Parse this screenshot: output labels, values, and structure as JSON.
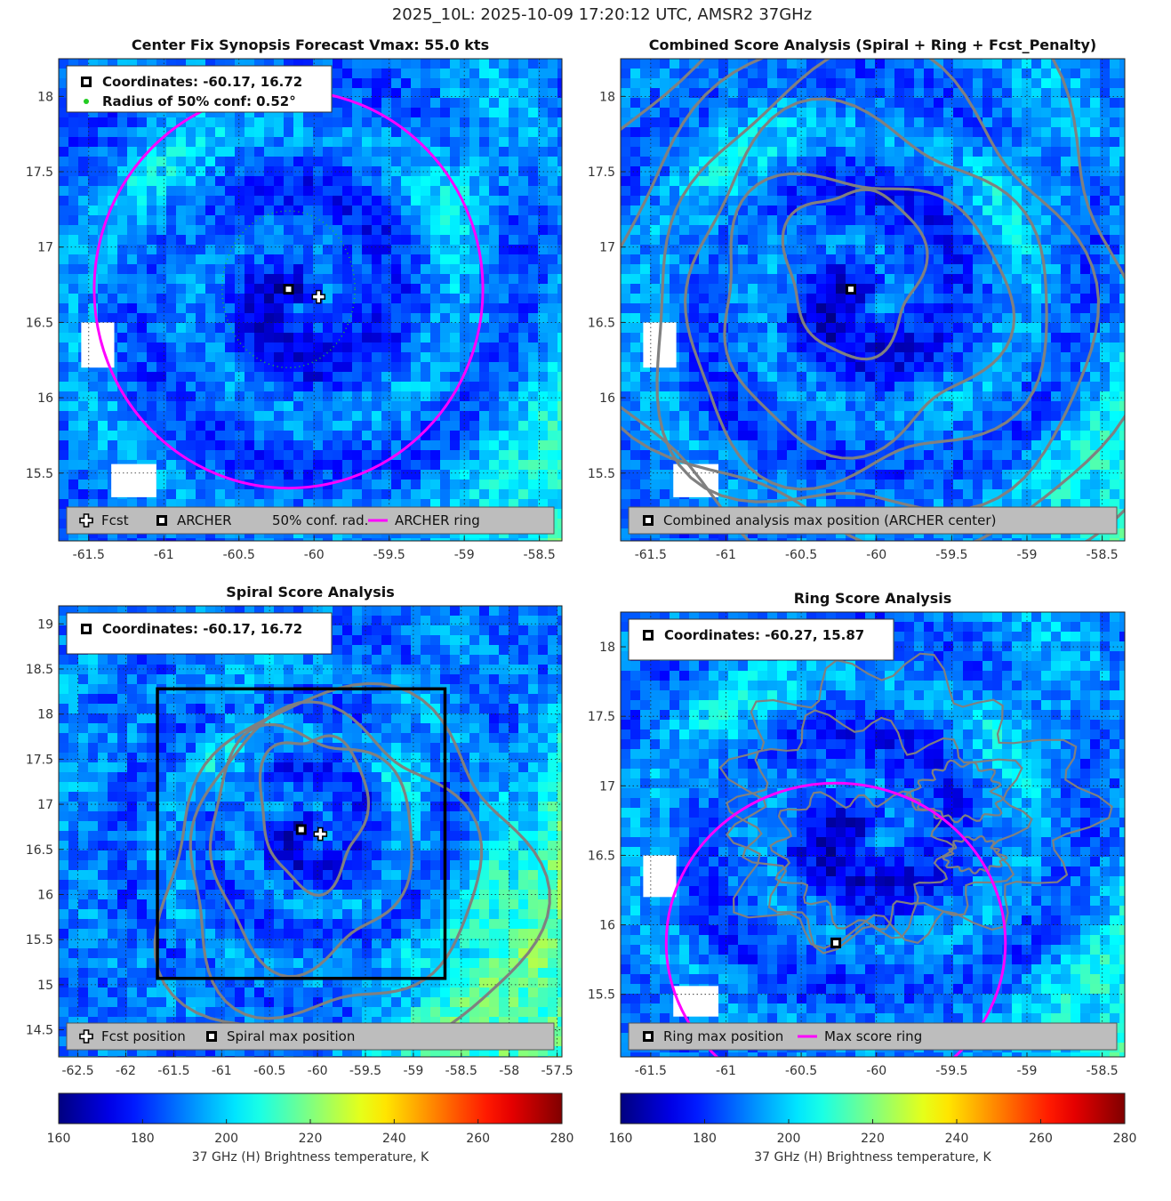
{
  "figure": {
    "title": "2025_10L: 2025-10-09 17:20:12 UTC, AMSR2 37GHz",
    "colors": {
      "ring": "#ff00ff",
      "contour": "#808080",
      "conf": "#22cc22",
      "legend_bg": "#bdbdbd"
    }
  },
  "chart_data": [
    {
      "type": "heatmap",
      "id": "center-fix-synopsis",
      "title": "Center Fix Synopsis     Forecast Vmax: 55.0 kts",
      "xlim": [
        -61.7,
        -58.35
      ],
      "ylim": [
        15.05,
        18.25
      ],
      "xticks": [
        -61.5,
        -61,
        -60.5,
        -60,
        -59.5,
        -59,
        -58.5
      ],
      "yticks": [
        15.5,
        16,
        16.5,
        17,
        17.5,
        18
      ],
      "xtick_labels": [
        "-61.5",
        "-61",
        "-60.5",
        "-60",
        "-59.5",
        "-59",
        "-58.5"
      ],
      "ytick_labels": [
        "15.5",
        "16",
        "16.5",
        "17",
        "17.5",
        "18"
      ],
      "info": [
        "Coordinates: -60.17, 16.72",
        "Radius of 50% conf: 0.52°"
      ],
      "legend": [
        "Fcst",
        "ARCHER",
        "50% conf. rad.",
        "ARCHER ring"
      ],
      "archer_center": [
        -60.17,
        16.72
      ],
      "fcst_position": [
        -59.97,
        16.67
      ],
      "conf_radius_deg": 0.52,
      "ring": {
        "center": [
          -60.17,
          16.72
        ],
        "radius_deg": 1.32
      },
      "contours": []
    },
    {
      "type": "heatmap",
      "id": "combined-score-analysis",
      "title": "Combined Score Analysis (Spiral + Ring + Fcst_Penalty)",
      "xlim": [
        -61.7,
        -58.35
      ],
      "ylim": [
        15.05,
        18.25
      ],
      "xticks": [
        -61.5,
        -61,
        -60.5,
        -60,
        -59.5,
        -59,
        -58.5
      ],
      "yticks": [
        15.5,
        16,
        16.5,
        17,
        17.5,
        18
      ],
      "xtick_labels": [
        "-61.5",
        "-61",
        "-60.5",
        "-60",
        "-59.5",
        "-59",
        "-58.5"
      ],
      "ytick_labels": [
        "15.5",
        "16",
        "16.5",
        "17",
        "17.5",
        "18"
      ],
      "info": [],
      "legend": [
        "Combined analysis max position (ARCHER center)"
      ],
      "archer_center": [
        -60.17,
        16.72
      ],
      "contours": [
        {
          "center": [
            -60.15,
            16.85
          ],
          "rx": 0.45,
          "ry": 0.55
        },
        {
          "center": [
            -60.12,
            16.6
          ],
          "rx": 0.95,
          "ry": 0.9
        },
        {
          "center": [
            -60.1,
            16.65
          ],
          "rx": 1.2,
          "ry": 1.2
        },
        {
          "center": [
            -60.05,
            16.65
          ],
          "rx": 1.45,
          "ry": 1.5
        },
        {
          "center": [
            -60.0,
            16.75
          ],
          "rx": 1.75,
          "ry": 1.75
        },
        {
          "center": [
            -59.95,
            16.8
          ],
          "rx": 2.05,
          "ry": 2.05
        }
      ]
    },
    {
      "type": "heatmap",
      "id": "spiral-score-analysis",
      "title": "Spiral Score Analysis",
      "xlim": [
        -62.7,
        -57.45
      ],
      "ylim": [
        14.2,
        19.2
      ],
      "xticks": [
        -62.5,
        -62,
        -61.5,
        -61,
        -60.5,
        -60,
        -59.5,
        -59,
        -58.5,
        -58,
        -57.5
      ],
      "yticks": [
        14.5,
        15,
        15.5,
        16,
        16.5,
        17,
        17.5,
        18,
        18.5,
        19
      ],
      "xtick_labels": [
        "-62.5",
        "-62",
        "-61.5",
        "-61",
        "-60.5",
        "-60",
        "-59.5",
        "-59",
        "-58.5",
        "-58",
        "-57.5"
      ],
      "ytick_labels": [
        "14.5",
        "15",
        "15.5",
        "16",
        "16.5",
        "17",
        "17.5",
        "18",
        "18.5",
        "19"
      ],
      "info": [
        "Coordinates: -60.17, 16.72"
      ],
      "legend": [
        "Fcst position",
        "Spiral max position"
      ],
      "archer_center": [
        -60.17,
        16.72
      ],
      "fcst_position": [
        -59.97,
        16.67
      ],
      "search_box": [
        -61.67,
        15.07,
        -58.67,
        18.28
      ],
      "contours": [
        {
          "center": [
            -60.05,
            16.95
          ],
          "rx": 0.55,
          "ry": 0.85
        },
        {
          "center": [
            -60.1,
            16.55
          ],
          "rx": 1.05,
          "ry": 1.3
        },
        {
          "center": [
            -59.9,
            16.3
          ],
          "rx": 1.5,
          "ry": 1.65
        },
        {
          "center": [
            -59.7,
            16.2
          ],
          "rx": 1.95,
          "ry": 1.95
        }
      ]
    },
    {
      "type": "heatmap",
      "id": "ring-score-analysis",
      "title": "Ring Score Analysis",
      "xlim": [
        -61.7,
        -58.35
      ],
      "ylim": [
        15.05,
        18.25
      ],
      "xticks": [
        -61.5,
        -61,
        -60.5,
        -60,
        -59.5,
        -59,
        -58.5
      ],
      "yticks": [
        15.5,
        16,
        16.5,
        17,
        17.5,
        18
      ],
      "xtick_labels": [
        "-61.5",
        "-61",
        "-60.5",
        "-60",
        "-59.5",
        "-59",
        "-58.5"
      ],
      "ytick_labels": [
        "15.5",
        "16",
        "16.5",
        "17",
        "17.5",
        "18"
      ],
      "info": [
        "Coordinates: -60.27, 15.87"
      ],
      "legend": [
        "Ring max position",
        "Max score ring"
      ],
      "archer_center": [
        -60.27,
        15.87
      ],
      "ring": {
        "center": [
          -60.27,
          15.87
        ],
        "radius_deg": 1.15
      },
      "contours": [
        {
          "center": [
            -60.1,
            16.5
          ],
          "rx": 0.55,
          "ry": 0.45
        },
        {
          "center": [
            -60.0,
            16.7
          ],
          "rx": 0.9,
          "ry": 0.75
        },
        {
          "center": [
            -59.85,
            16.85
          ],
          "rx": 1.15,
          "ry": 0.95
        },
        {
          "center": [
            -59.35,
            16.5
          ],
          "rx": 0.18,
          "ry": 0.12
        },
        {
          "center": [
            -59.45,
            16.95
          ],
          "rx": 0.28,
          "ry": 0.2
        }
      ]
    }
  ],
  "colorbars": [
    {
      "label": "37 GHz (H) Brightness temperature, K",
      "min": 160,
      "max": 280,
      "ticks": [
        "160",
        "180",
        "200",
        "220",
        "240",
        "260",
        "280"
      ]
    },
    {
      "label": "37 GHz (H) Brightness temperature, K",
      "min": 160,
      "max": 280,
      "ticks": [
        "160",
        "180",
        "200",
        "220",
        "240",
        "260",
        "280"
      ]
    }
  ]
}
